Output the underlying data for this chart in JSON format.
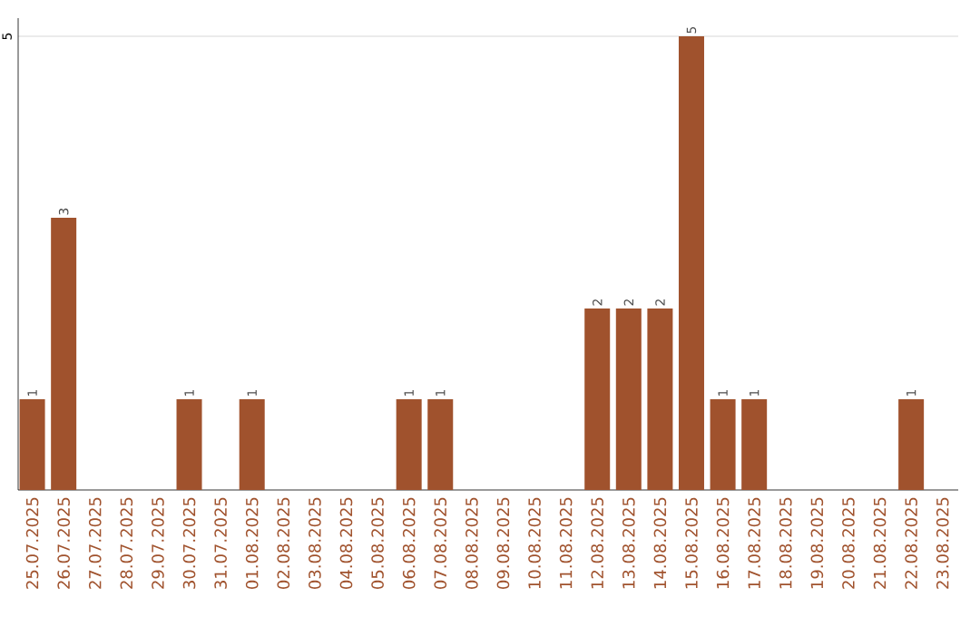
{
  "chart_data": {
    "type": "bar",
    "categories": [
      "25.07.2025",
      "26.07.2025",
      "27.07.2025",
      "28.07.2025",
      "29.07.2025",
      "30.07.2025",
      "31.07.2025",
      "01.08.2025",
      "02.08.2025",
      "03.08.2025",
      "04.08.2025",
      "05.08.2025",
      "06.08.2025",
      "07.08.2025",
      "08.08.2025",
      "09.08.2025",
      "10.08.2025",
      "11.08.2025",
      "12.08.2025",
      "13.08.2025",
      "14.08.2025",
      "15.08.2025",
      "16.08.2025",
      "17.08.2025",
      "18.08.2025",
      "19.08.2025",
      "20.08.2025",
      "21.08.2025",
      "22.08.2025",
      "23.08.2025"
    ],
    "values": [
      1,
      3,
      0,
      0,
      0,
      1,
      0,
      1,
      0,
      0,
      0,
      0,
      1,
      1,
      0,
      0,
      0,
      0,
      2,
      2,
      2,
      5,
      1,
      1,
      0,
      0,
      0,
      0,
      1,
      0
    ],
    "value_labels": [
      "1",
      "3",
      null,
      null,
      null,
      "1",
      null,
      "1",
      null,
      null,
      null,
      null,
      "1",
      "1",
      null,
      null,
      null,
      null,
      "2",
      "2",
      "2",
      "5",
      "1",
      "1",
      null,
      null,
      null,
      null,
      "1",
      null
    ],
    "color": "#a0522d",
    "ylim": [
      0,
      5.2
    ],
    "yticks": [
      5
    ],
    "grid": "y"
  }
}
